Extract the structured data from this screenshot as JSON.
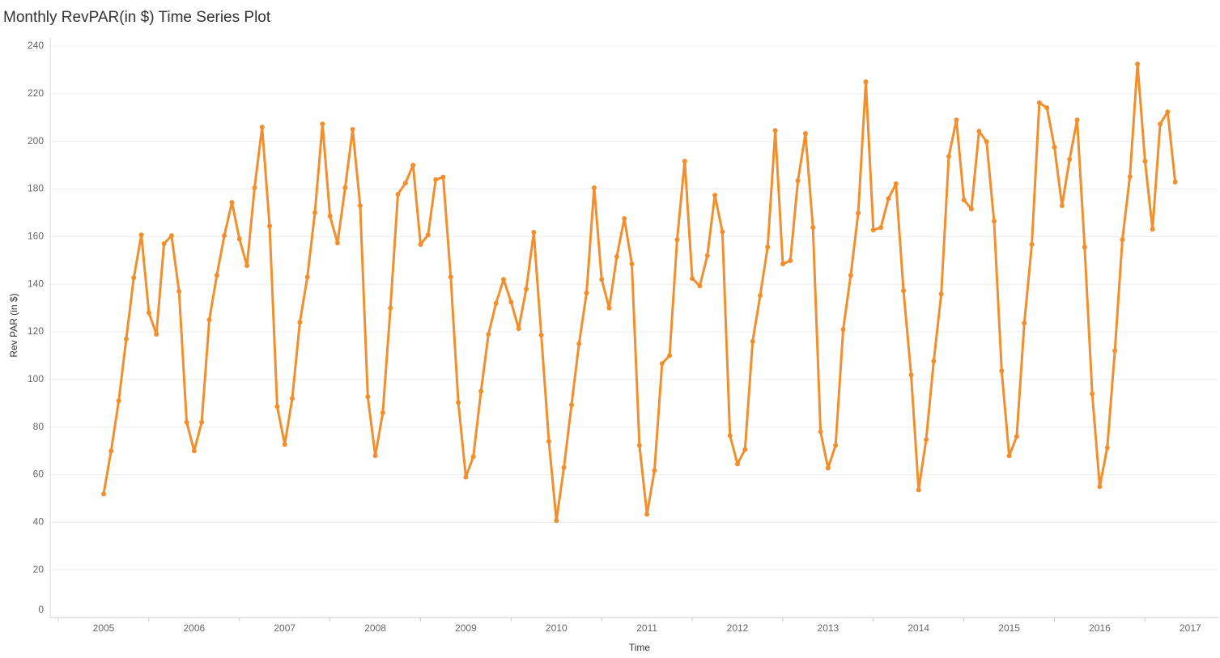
{
  "chart_data": {
    "type": "line",
    "title": "Monthly RevPAR(in $) Time Series Plot",
    "x_label": "Time",
    "y_label": "Rev PAR (in $)",
    "x": [
      2005.0,
      2005.083,
      2005.167,
      2005.25,
      2005.333,
      2005.417,
      2005.5,
      2005.583,
      2005.667,
      2005.75,
      2005.833,
      2005.917,
      2006.0,
      2006.083,
      2006.167,
      2006.25,
      2006.333,
      2006.417,
      2006.5,
      2006.583,
      2006.667,
      2006.75,
      2006.833,
      2006.917,
      2007.0,
      2007.083,
      2007.167,
      2007.25,
      2007.333,
      2007.417,
      2007.5,
      2007.583,
      2007.667,
      2007.75,
      2007.833,
      2007.917,
      2008.0,
      2008.083,
      2008.167,
      2008.25,
      2008.333,
      2008.417,
      2008.5,
      2008.583,
      2008.667,
      2008.75,
      2008.833,
      2008.917,
      2009.0,
      2009.083,
      2009.167,
      2009.25,
      2009.333,
      2009.417,
      2009.5,
      2009.583,
      2009.667,
      2009.75,
      2009.833,
      2009.917,
      2010.0,
      2010.083,
      2010.167,
      2010.25,
      2010.333,
      2010.417,
      2010.5,
      2010.583,
      2010.667,
      2010.75,
      2010.833,
      2010.917,
      2011.0,
      2011.083,
      2011.167,
      2011.25,
      2011.333,
      2011.417,
      2011.5,
      2011.583,
      2011.667,
      2011.75,
      2011.833,
      2011.917,
      2012.0,
      2012.083,
      2012.167,
      2012.25,
      2012.333,
      2012.417,
      2012.5,
      2012.583,
      2012.667,
      2012.75,
      2012.833,
      2012.917,
      2013.0,
      2013.083,
      2013.167,
      2013.25,
      2013.333,
      2013.417,
      2013.5,
      2013.583,
      2013.667,
      2013.75,
      2013.833,
      2013.917,
      2014.0,
      2014.083,
      2014.167,
      2014.25,
      2014.333,
      2014.417,
      2014.5,
      2014.583,
      2014.667,
      2014.75,
      2014.833,
      2014.917,
      2015.0,
      2015.083,
      2015.167,
      2015.25,
      2015.333,
      2015.417,
      2015.5,
      2015.583,
      2015.667,
      2015.75,
      2015.833,
      2015.917,
      2016.0,
      2016.083,
      2016.167,
      2016.25,
      2016.333,
      2016.417,
      2016.5,
      2016.583,
      2016.667,
      2016.75,
      2016.833
    ],
    "series": [
      {
        "name": "Rev PAR",
        "color": "#f28e2b",
        "values": [
          51.9,
          70,
          91,
          117,
          142.7,
          160.7,
          128,
          119,
          157,
          160.4,
          137,
          82,
          70,
          82,
          125,
          143.7,
          160.4,
          174.4,
          159,
          147.8,
          180.5,
          206,
          164.5,
          88.6,
          72.7,
          92,
          124,
          143,
          170,
          207.3,
          168.6,
          157.3,
          180.5,
          205,
          173,
          92.7,
          68,
          86,
          130,
          177.8,
          182.5,
          190,
          156.7,
          160.7,
          183.9,
          185,
          143,
          90.3,
          59,
          67.6,
          95,
          119,
          132,
          142,
          132.5,
          121.3,
          138,
          161.8,
          118.6,
          74,
          40.7,
          63,
          89.3,
          115,
          136.3,
          180.5,
          142,
          130,
          151.6,
          167.6,
          148.5,
          72.3,
          43.4,
          61.8,
          106.7,
          110,
          158.7,
          191.7,
          142.4,
          139.3,
          152,
          177.4,
          162,
          76.4,
          64.5,
          70.6,
          116,
          135.2,
          155.6,
          204.6,
          148.5,
          149.9,
          183.5,
          203.3,
          163.8,
          78,
          62.8,
          72.3,
          121,
          143.7,
          169.9,
          225,
          162.8,
          163.8,
          176,
          182.2,
          137.3,
          101.9,
          53.6,
          74.7,
          107.7,
          135.9,
          193.7,
          209,
          175.4,
          171.6,
          204.3,
          199.9,
          166.5,
          103.6,
          67.9,
          76,
          123.7,
          156.7,
          216.2,
          214.1,
          197.5,
          173,
          192.4,
          209,
          155.6,
          94,
          55,
          71.3,
          112.1,
          158.7,
          185.2,
          232.5,
          191.7,
          163.1,
          207.3,
          212.4,
          182.9
        ]
      }
    ],
    "xlim": [
      2004.41,
      2017.31
    ],
    "xticks": [
      2005,
      2006,
      2007,
      2008,
      2009,
      2010,
      2011,
      2012,
      2013,
      2014,
      2015,
      2016,
      2017
    ],
    "ylim": [
      0,
      240
    ],
    "yticks": [
      0,
      20,
      40,
      60,
      80,
      100,
      120,
      140,
      160,
      180,
      200,
      220,
      240
    ],
    "grid": true
  }
}
